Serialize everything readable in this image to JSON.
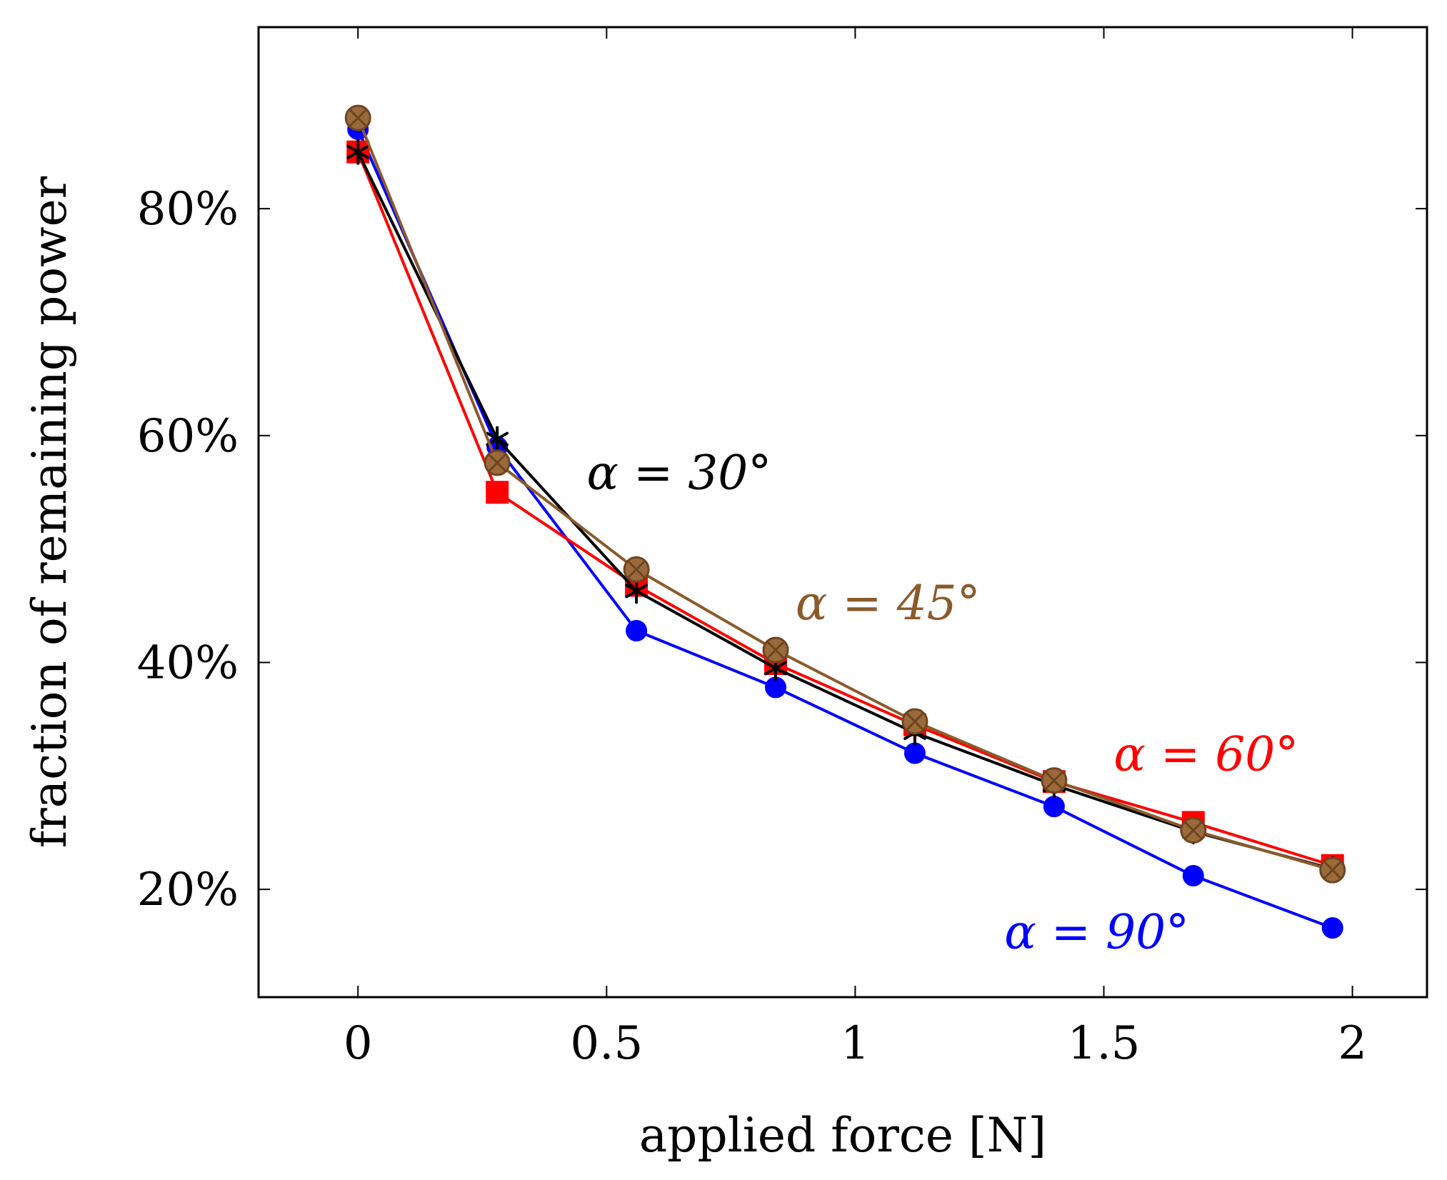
{
  "chart_data": {
    "type": "line",
    "title": "",
    "xlabel": "applied force [N]",
    "ylabel": "fraction of remaining power",
    "xlim": [
      -0.2,
      2.15
    ],
    "ylim": [
      10.5,
      96.0
    ],
    "grid": false,
    "x_ticks": [
      0,
      0.5,
      1,
      1.5,
      2
    ],
    "x_tick_labels": [
      "0",
      "0.5",
      "1",
      "1.5",
      "2"
    ],
    "y_ticks": [
      20,
      40,
      60,
      80
    ],
    "y_tick_labels": [
      "20%",
      "40%",
      "60%",
      "80%"
    ],
    "x": [
      0,
      0.28,
      0.56,
      0.84,
      1.12,
      1.4,
      1.68,
      1.96
    ],
    "series": [
      {
        "name": "α = 90°",
        "color": "#0000ff",
        "marker": "circle",
        "values": [
          87.0,
          59.0,
          42.8,
          37.8,
          32.0,
          27.3,
          21.2,
          16.6
        ]
      },
      {
        "name": "α = 60°",
        "color": "#ff0000",
        "marker": "square",
        "values": [
          85.0,
          55.0,
          46.8,
          39.9,
          34.5,
          29.5,
          25.9,
          22.1
        ]
      },
      {
        "name": "α = 30°",
        "color": "#000000",
        "marker": "star",
        "values": [
          85.0,
          59.7,
          46.3,
          39.5,
          33.8,
          29.2,
          25.1,
          21.8
        ]
      },
      {
        "name": "α = 45°",
        "color": "#8b5a2b",
        "marker": "circle-x",
        "values": [
          88.0,
          57.6,
          48.2,
          41.1,
          34.8,
          29.6,
          25.2,
          21.7
        ]
      }
    ],
    "annotations": [
      {
        "text": "α = 30°",
        "series": "α = 30°",
        "x": 0.46,
        "y": 55.3,
        "color": "#000000"
      },
      {
        "text": "α = 45°",
        "series": "α = 45°",
        "x": 0.88,
        "y": 43.8,
        "color": "#8b5a2b"
      },
      {
        "text": "α = 60°",
        "series": "α = 60°",
        "x": 1.52,
        "y": 30.5,
        "color": "#ff0000"
      },
      {
        "text": "α = 90°",
        "series": "α = 90°",
        "x": 1.3,
        "y": 14.8,
        "color": "#0000ff"
      }
    ]
  }
}
